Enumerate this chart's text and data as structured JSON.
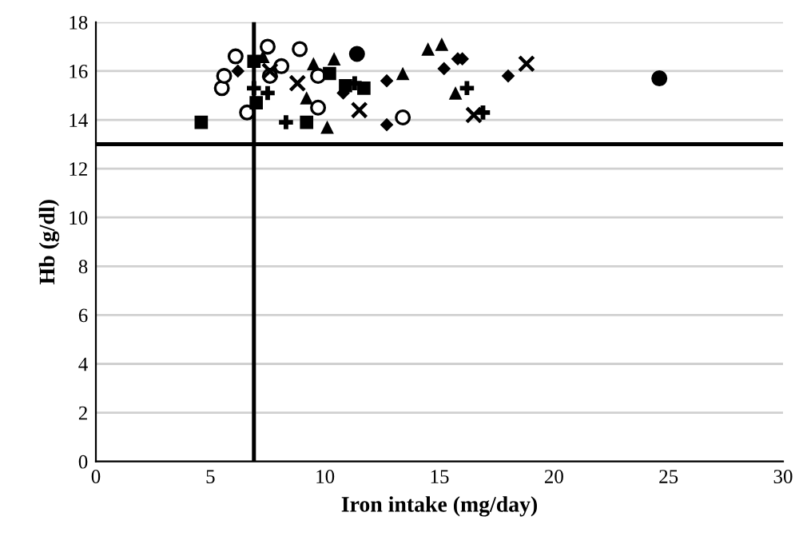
{
  "chart_data": {
    "type": "scatter",
    "xlabel": "Iron intake (mg/day)",
    "ylabel": "Hb (g/dl)",
    "xlim": [
      0,
      30
    ],
    "xticks": [
      0,
      5,
      10,
      15,
      20,
      25,
      30
    ],
    "ylim": [
      0,
      18
    ],
    "yticks": [
      0,
      2,
      4,
      6,
      8,
      10,
      12,
      14,
      16,
      18
    ],
    "grid": "y",
    "ref_lines": [
      {
        "axis": "x",
        "value": 6.9,
        "color": "#000000"
      },
      {
        "axis": "y",
        "value": 13,
        "color": "#000000"
      }
    ],
    "series": [
      {
        "color": "#000000",
        "marker": "circle",
        "x": [
          11.4,
          24.6
        ],
        "values": [
          16.7,
          15.7
        ]
      },
      {
        "color": "#ffffff",
        "marker": "circle",
        "x": [
          5.5,
          6.1,
          7.5,
          8.9,
          6.6,
          9.7,
          13.4,
          8.1,
          9.7,
          5.6,
          7.6
        ],
        "values": [
          15.3,
          16.6,
          17.0,
          16.9,
          14.3,
          14.5,
          14.1,
          16.2,
          15.8,
          15.8,
          15.8
        ]
      },
      {
        "color": "#000000",
        "marker": "square",
        "x": [
          4.6,
          9.2,
          6.9,
          11.7,
          10.9,
          10.2,
          7.0
        ],
        "values": [
          13.9,
          13.9,
          16.4,
          15.3,
          15.4,
          15.9,
          14.7
        ]
      },
      {
        "color": "#000000",
        "marker": "triangle",
        "x": [
          10.4,
          13.4,
          14.5,
          15.1,
          15.7,
          10.1,
          9.2,
          9.5,
          7.3
        ],
        "values": [
          16.5,
          15.9,
          16.9,
          17.1,
          15.1,
          13.7,
          14.9,
          16.3,
          16.6
        ]
      },
      {
        "color": "#000000",
        "marker": "diamond",
        "x": [
          12.7,
          12.7,
          15.2,
          18.0,
          15.8,
          10.8,
          16.0,
          6.2
        ],
        "values": [
          15.6,
          13.8,
          16.1,
          15.8,
          16.5,
          15.1,
          16.5,
          16.0
        ]
      },
      {
        "color": "#000000",
        "marker": "cross",
        "x": [
          18.8,
          16.5,
          11.5,
          8.8,
          7.6
        ],
        "values": [
          16.3,
          14.2,
          14.4,
          15.5,
          16.0
        ]
      },
      {
        "color": "#000000",
        "marker": "plus",
        "x": [
          16.9,
          16.2,
          8.3,
          7.5,
          11.3,
          6.9
        ],
        "values": [
          14.3,
          15.3,
          13.9,
          15.1,
          15.5,
          15.3
        ]
      }
    ]
  }
}
